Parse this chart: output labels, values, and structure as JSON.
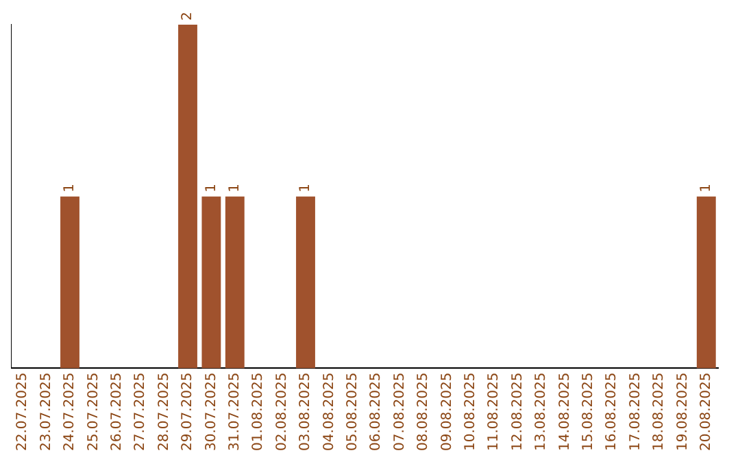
{
  "chart_data": {
    "type": "bar",
    "categories": [
      "22.07.2025",
      "23.07.2025",
      "24.07.2025",
      "25.07.2025",
      "26.07.2025",
      "27.07.2025",
      "28.07.2025",
      "29.07.2025",
      "30.07.2025",
      "31.07.2025",
      "01.08.2025",
      "02.08.2025",
      "03.08.2025",
      "04.08.2025",
      "05.08.2025",
      "06.08.2025",
      "07.08.2025",
      "08.08.2025",
      "09.08.2025",
      "10.08.2025",
      "11.08.2025",
      "12.08.2025",
      "13.08.2025",
      "14.08.2025",
      "15.08.2025",
      "16.08.2025",
      "17.08.2025",
      "18.08.2025",
      "19.08.2025",
      "20.08.2025"
    ],
    "values": [
      0,
      0,
      1,
      0,
      0,
      0,
      0,
      2,
      1,
      1,
      0,
      0,
      1,
      0,
      0,
      0,
      0,
      0,
      0,
      0,
      0,
      0,
      0,
      0,
      0,
      0,
      0,
      0,
      0,
      1
    ],
    "color": "#a0522d",
    "value_labels": [
      null,
      null,
      "1",
      null,
      null,
      null,
      null,
      "2",
      "1",
      "1",
      null,
      null,
      "1",
      null,
      null,
      null,
      null,
      null,
      null,
      null,
      null,
      null,
      null,
      null,
      null,
      null,
      null,
      null,
      null,
      "1"
    ],
    "grid": false,
    "legend": false,
    "tick_labels": "x"
  }
}
